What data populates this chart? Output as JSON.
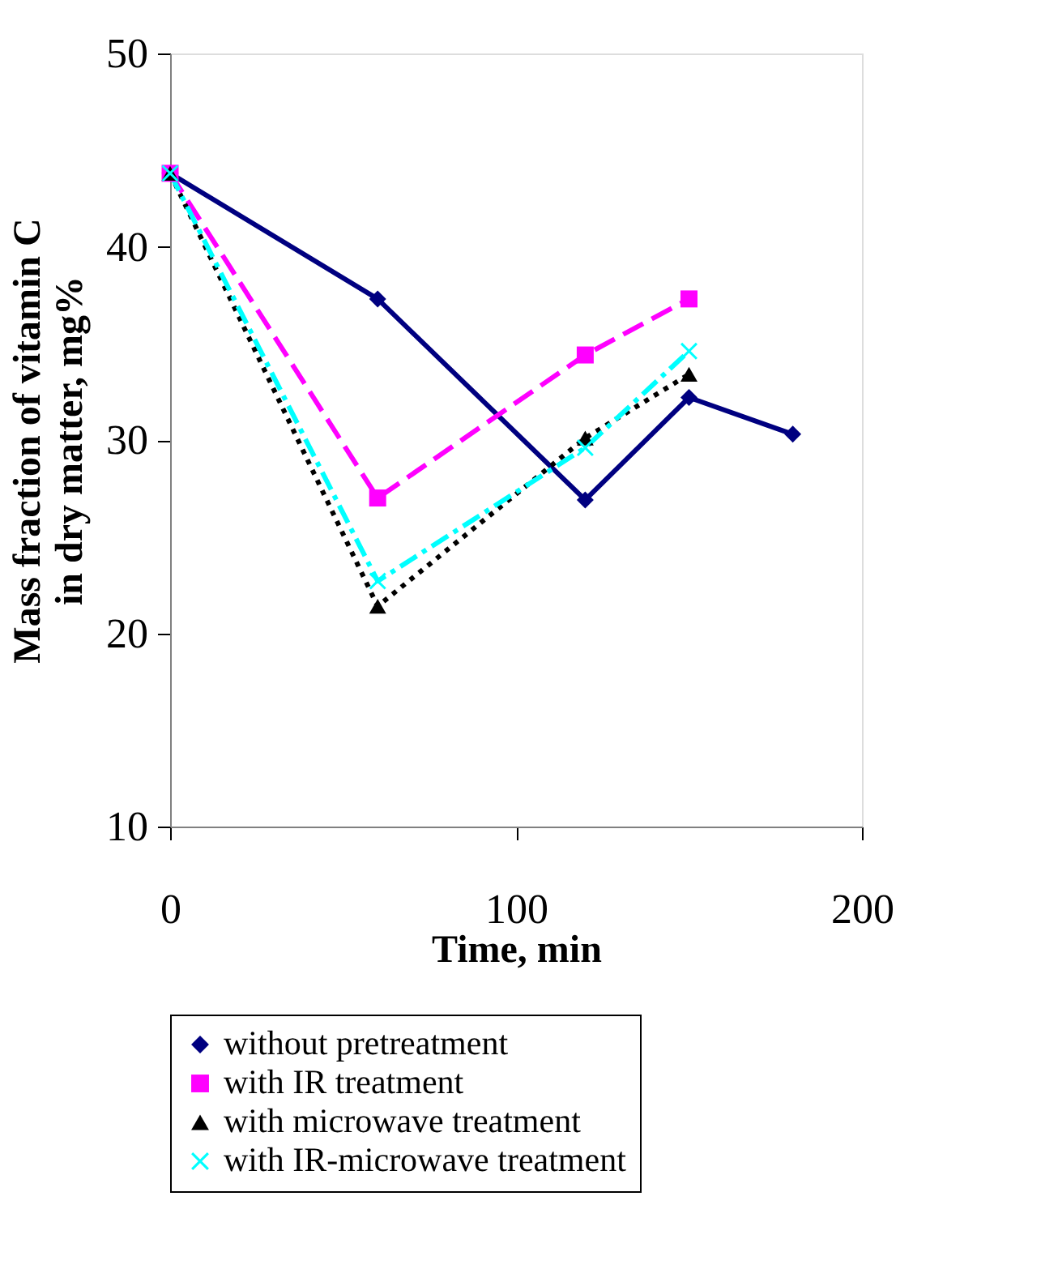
{
  "chart_data": {
    "type": "line",
    "xlabel": "Time, min",
    "ylabel": "Mass fraction of vitamin C\nin dry matter, mg%",
    "xlim": [
      0,
      200
    ],
    "xticks": [
      0,
      100,
      200
    ],
    "ylim": [
      10,
      50
    ],
    "yticks": [
      10,
      20,
      30,
      40,
      50
    ],
    "grid": false,
    "legend": "bottom",
    "series": [
      {
        "name": "without pretreatment",
        "color": "#000080",
        "marker": "diamond",
        "line_style": "solid",
        "x": [
          0,
          60,
          120,
          150,
          180
        ],
        "values": [
          43.8,
          37.3,
          26.9,
          32.2,
          30.3
        ]
      },
      {
        "name": "with IR treatment",
        "color": "#ff00ff",
        "marker": "square",
        "line_style": "dashed",
        "x": [
          0,
          60,
          120,
          150
        ],
        "values": [
          43.8,
          27.0,
          34.4,
          37.3
        ]
      },
      {
        "name": "with microwave treatment",
        "color": "#000000",
        "marker": "triangle",
        "line_style": "dotted",
        "x": [
          0,
          60,
          120,
          150
        ],
        "values": [
          43.8,
          21.4,
          30.1,
          33.4
        ]
      },
      {
        "name": "with IR-microwave treatment",
        "color": "#00ffff",
        "marker": "cross",
        "line_style": "dashdot",
        "x": [
          0,
          60,
          120,
          150
        ],
        "values": [
          43.8,
          22.7,
          29.6,
          34.6
        ]
      }
    ]
  }
}
